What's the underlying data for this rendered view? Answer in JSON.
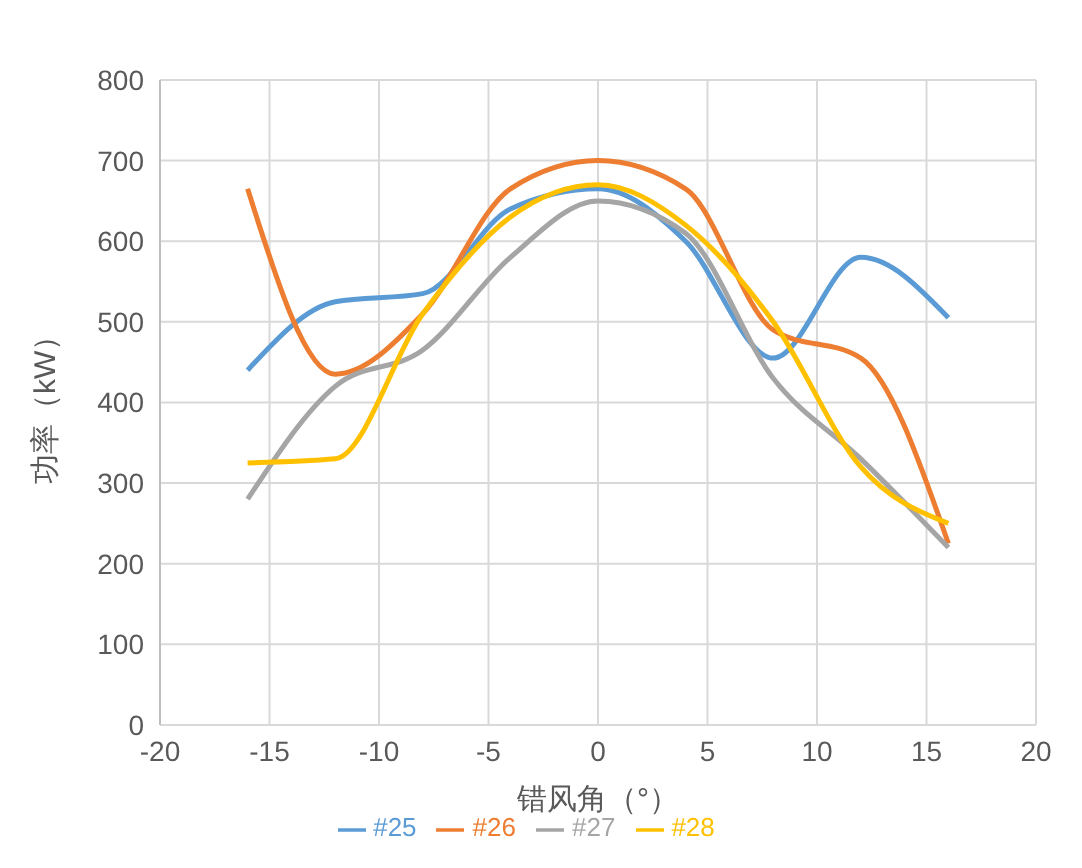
{
  "chart_data": {
    "type": "line",
    "xlabel": "错风角（°）",
    "ylabel": "功率（kW）",
    "x": [
      -16,
      -12,
      -8,
      -4,
      0,
      4,
      8,
      12,
      16
    ],
    "series": [
      {
        "name": "#25",
        "color": "#5b9bd5",
        "values": [
          440,
          525,
          535,
          640,
          665,
          600,
          455,
          580,
          505
        ]
      },
      {
        "name": "#26",
        "color": "#ed7d31",
        "values": [
          665,
          435,
          510,
          665,
          700,
          665,
          490,
          455,
          225
        ]
      },
      {
        "name": "#27",
        "color": "#a5a5a5",
        "values": [
          280,
          420,
          465,
          580,
          650,
          610,
          430,
          330,
          220
        ]
      },
      {
        "name": "#28",
        "color": "#ffc000",
        "values": [
          325,
          330,
          510,
          630,
          670,
          620,
          500,
          320,
          250
        ]
      }
    ],
    "xlim": [
      -20,
      20
    ],
    "xticks": [
      -20,
      -15,
      -10,
      -5,
      0,
      5,
      10,
      15,
      20
    ],
    "ylim": [
      0,
      800
    ],
    "yticks": [
      0,
      100,
      200,
      300,
      400,
      500,
      600,
      700,
      800
    ],
    "grid": true,
    "legend": "bottom",
    "marker": "none",
    "line_style": "solid"
  }
}
